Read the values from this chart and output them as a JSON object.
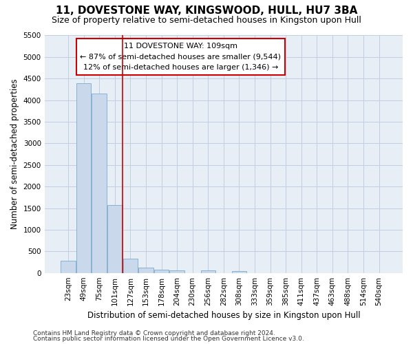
{
  "title": "11, DOVESTONE WAY, KINGSWOOD, HULL, HU7 3BA",
  "subtitle": "Size of property relative to semi-detached houses in Kingston upon Hull",
  "xlabel": "Distribution of semi-detached houses by size in Kingston upon Hull",
  "ylabel": "Number of semi-detached properties",
  "footnote1": "Contains HM Land Registry data © Crown copyright and database right 2024.",
  "footnote2": "Contains public sector information licensed under the Open Government Licence v3.0.",
  "annotation_title": "11 DOVESTONE WAY: 109sqm",
  "annotation_line1": "← 87% of semi-detached houses are smaller (9,544)",
  "annotation_line2": "12% of semi-detached houses are larger (1,346) →",
  "categories": [
    "23sqm",
    "49sqm",
    "75sqm",
    "101sqm",
    "127sqm",
    "153sqm",
    "178sqm",
    "204sqm",
    "230sqm",
    "256sqm",
    "282sqm",
    "308sqm",
    "333sqm",
    "359sqm",
    "385sqm",
    "411sqm",
    "437sqm",
    "463sqm",
    "488sqm",
    "514sqm",
    "540sqm"
  ],
  "values": [
    280,
    4400,
    4150,
    1575,
    325,
    120,
    70,
    65,
    0,
    60,
    0,
    50,
    0,
    0,
    0,
    0,
    0,
    0,
    0,
    0,
    0
  ],
  "bar_color": "#c9d9eb",
  "bar_edge_color": "#7aaace",
  "vline_color": "#cc0000",
  "vline_bar_index": 3,
  "annotation_box_color": "#cc0000",
  "ylim": [
    0,
    5500
  ],
  "yticks": [
    0,
    500,
    1000,
    1500,
    2000,
    2500,
    3000,
    3500,
    4000,
    4500,
    5000,
    5500
  ],
  "grid_color": "#c0cfe0",
  "bg_color": "#e8eef5",
  "title_fontsize": 11,
  "subtitle_fontsize": 9,
  "axis_label_fontsize": 8.5,
  "tick_fontsize": 7.5,
  "annotation_fontsize": 8,
  "footnote_fontsize": 6.5
}
